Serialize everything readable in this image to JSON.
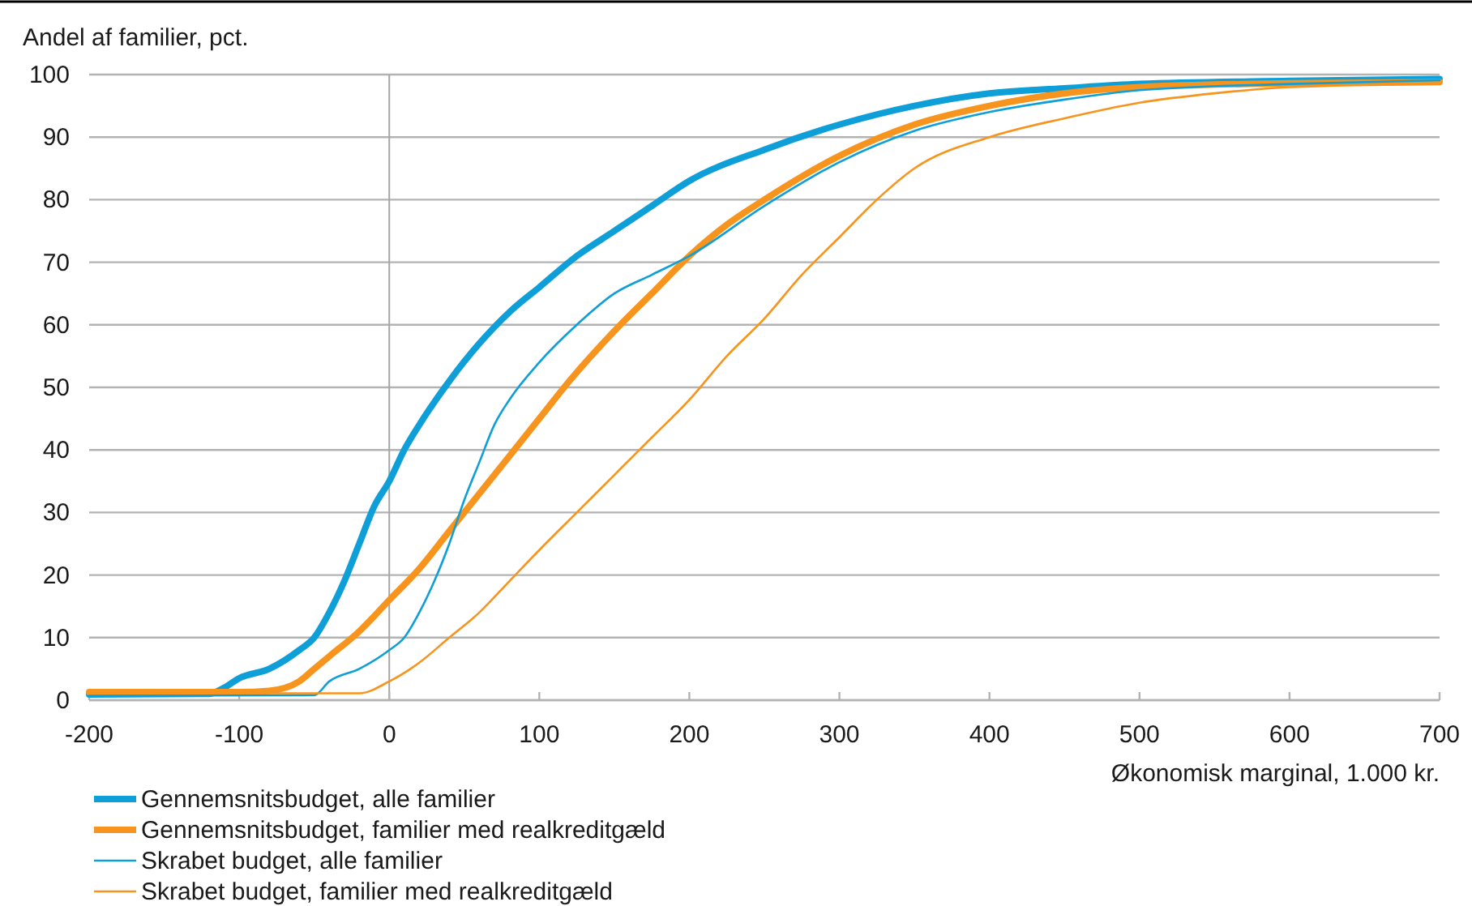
{
  "chart_data": {
    "type": "line",
    "ylabel": "Andel af familier, pct.",
    "xlabel": "Økonomisk marginal, 1.000 kr.",
    "xlim": [
      -200,
      700
    ],
    "xticks": [
      -200,
      -100,
      0,
      100,
      200,
      300,
      400,
      500,
      600,
      700
    ],
    "ylim": [
      0,
      100
    ],
    "yticks": [
      0,
      10,
      20,
      30,
      40,
      50,
      60,
      70,
      80,
      90,
      100
    ],
    "grid": "y",
    "legend": "bottom",
    "line_style": "solid",
    "marker": "none",
    "ref_lines": [
      {
        "axis": "x",
        "value": 0,
        "color": "#a6a6a6"
      }
    ],
    "series": [
      {
        "name": "Gennemsnitsbudget, alle familier",
        "color": "#0e9fd8",
        "x": [
          -200,
          -120,
          -110,
          -100,
          -80,
          -60,
          -50,
          -40,
          -30,
          -20,
          -10,
          0,
          10,
          20,
          40,
          60,
          80,
          100,
          125,
          150,
          175,
          200,
          250,
          300,
          350,
          400,
          450,
          500,
          600,
          700
        ],
        "values": [
          0.9,
          1,
          2,
          3.5,
          5,
          8,
          10,
          14,
          19,
          25,
          31,
          35,
          40,
          44,
          51,
          57,
          62,
          66,
          71,
          75,
          79,
          83,
          88,
          92,
          95,
          97,
          97.8,
          98.5,
          99,
          99.3
        ]
      },
      {
        "name": "Gennemsnitsbudget, familier med realkreditgæld",
        "color": "#f7941d",
        "x": [
          -200,
          -100,
          -80,
          -60,
          -50,
          -40,
          -20,
          0,
          20,
          40,
          60,
          80,
          100,
          120,
          150,
          175,
          200,
          225,
          250,
          300,
          350,
          400,
          450,
          500,
          600,
          700
        ],
        "values": [
          1.3,
          1.3,
          1.5,
          3,
          5,
          7,
          11,
          16,
          21,
          27,
          33,
          39,
          45,
          51,
          59,
          65,
          71,
          76,
          80,
          87,
          92,
          95,
          97,
          98,
          98.6,
          98.8
        ]
      },
      {
        "name": "Skrabet budget, alle familier",
        "color": "#0e9fd8",
        "x": [
          -200,
          -50,
          -40,
          -20,
          0,
          10,
          20,
          30,
          40,
          50,
          60,
          70,
          80,
          100,
          125,
          150,
          175,
          200,
          250,
          300,
          350,
          400,
          450,
          500,
          600,
          700
        ],
        "values": [
          0.7,
          0.8,
          3,
          5,
          8,
          10,
          14,
          19,
          25,
          32,
          38,
          44,
          48,
          54,
          60,
          65,
          68,
          71,
          79,
          86,
          91,
          94,
          96,
          97.5,
          98.5,
          99.1
        ]
      },
      {
        "name": "Skrabet budget, familier med realkreditgæld",
        "color": "#f7941d",
        "x": [
          -200,
          -20,
          0,
          20,
          40,
          60,
          80,
          100,
          125,
          150,
          175,
          200,
          225,
          250,
          275,
          300,
          325,
          350,
          400,
          450,
          500,
          550,
          600,
          700
        ],
        "values": [
          1.1,
          1.1,
          3,
          6,
          10,
          14,
          19,
          24,
          30,
          36,
          42,
          48,
          55,
          61,
          68,
          74,
          80,
          85,
          90,
          93,
          95.5,
          97,
          98,
          98.5
        ]
      }
    ]
  }
}
